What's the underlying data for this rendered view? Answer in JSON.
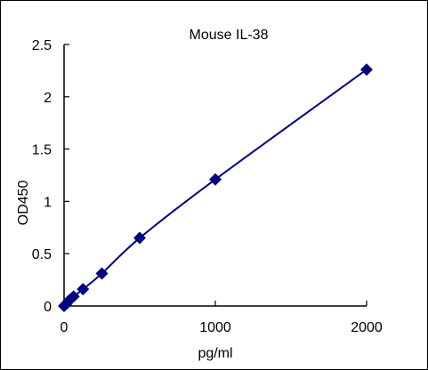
{
  "chart_data": {
    "type": "line",
    "title": "Mouse  IL-38",
    "xlabel": "pg/ml",
    "ylabel": "OD450",
    "xlim": [
      0,
      2000
    ],
    "ylim": [
      0,
      2.5
    ],
    "xticks": [
      0,
      1000,
      2000
    ],
    "xtick_labels": [
      "0",
      "1000",
      "2000"
    ],
    "yticks": [
      0,
      0.5,
      1,
      1.5,
      2,
      2.5
    ],
    "ytick_labels": [
      "0",
      "0.5",
      "1",
      "1.5",
      "2",
      "2.5"
    ],
    "grid": false,
    "legend": "none",
    "series": [
      {
        "marker": "diamond",
        "color": "#000080",
        "x": [
          0,
          15.6,
          31.25,
          62.5,
          125,
          250,
          500,
          1000,
          2000
        ],
        "y": [
          0.0,
          0.02,
          0.05,
          0.09,
          0.16,
          0.31,
          0.65,
          1.21,
          2.26
        ]
      }
    ]
  }
}
